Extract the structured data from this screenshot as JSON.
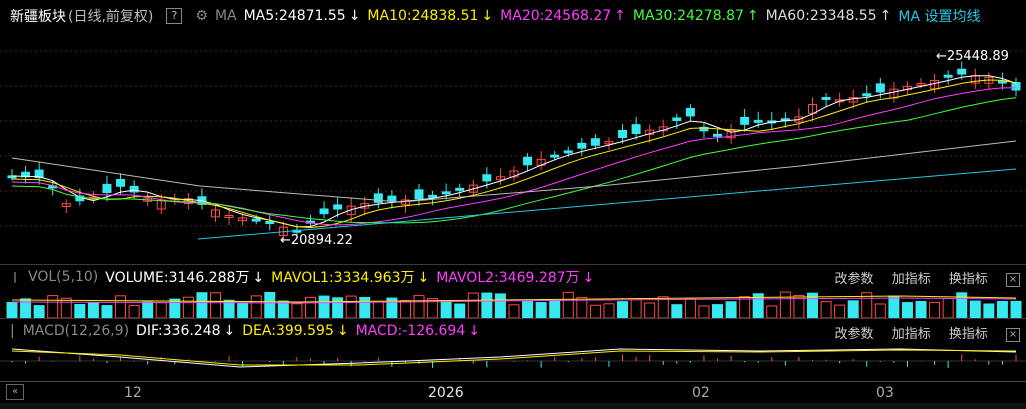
{
  "header": {
    "title": "新疆板块",
    "subtitle": "(日线,前复权)",
    "help": "?",
    "ma_label": "MA",
    "ma5": "MA5:24871.55",
    "ma10": "MA10:24838.51",
    "ma20": "MA20:24568.27",
    "ma30": "MA30:24278.87",
    "ma60": "MA60:23348.55",
    "ma_settings": "MA 设置均线",
    "arrow_down": "↓",
    "arrow_up": "↑"
  },
  "main_chart": {
    "high_label": "←25448.89",
    "low_label": "←20894.22",
    "colors": {
      "up": "#ff4a4a",
      "down": "#38e8f0",
      "ma5": "#ffffff",
      "ma10": "#ffef00",
      "ma20": "#ff3cff",
      "ma30": "#40ff40",
      "ma60": "#bbbbbb",
      "trend": "#27c7e6"
    }
  },
  "vol_panel": {
    "name": "VOL(5,10)",
    "volume": "VOLUME:3146.288万",
    "mavol1": "MAVOL1:3334.963万",
    "mavol2": "MAVOL2:3469.287万",
    "arrow": "↓",
    "buttons": [
      "改参数",
      "加指标",
      "换指标"
    ],
    "close": "×"
  },
  "macd_panel": {
    "name": "MACD(12,26,9)",
    "dif": "DIF:336.248",
    "dea": "DEA:399.595",
    "macd": "MACD:-126.694",
    "arrow": "↓",
    "buttons": [
      "改参数",
      "加指标",
      "换指标"
    ],
    "close": "×"
  },
  "xaxis": {
    "nav": "«",
    "ticks": [
      "12",
      "2026",
      "02",
      "03"
    ]
  },
  "chart_data": {
    "type": "candlestick",
    "high": 25448.89,
    "low": 20894.22,
    "bars": 75,
    "ma": {
      "MA5": 24871.55,
      "MA10": 24838.51,
      "MA20": 24568.27,
      "MA30": 24278.87,
      "MA60": 23348.55
    },
    "volume": {
      "VOLUME": 3146.288,
      "MAVOL1": 3334.963,
      "MAVOL2": 3469.287,
      "unit": "万"
    },
    "macd": {
      "DIF": 336.248,
      "DEA": 399.595,
      "MACD": -126.694
    }
  }
}
